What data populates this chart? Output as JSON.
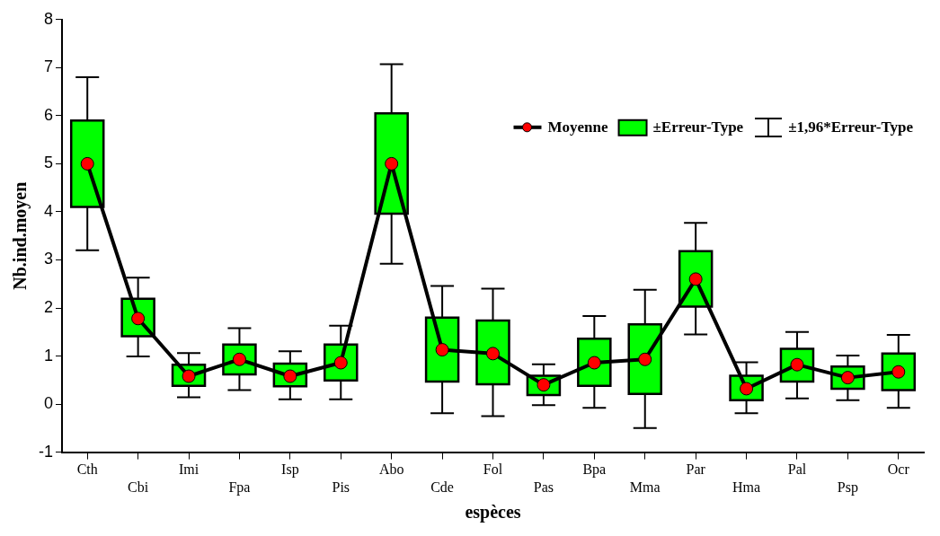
{
  "chart_data": {
    "type": "box",
    "xlabel": "espèces",
    "ylabel": "Nb.ind.moyen",
    "categories": [
      "Cth",
      "Cbi",
      "Imi",
      "Fpa",
      "Isp",
      "Pis",
      "Abo",
      "Cde",
      "Fol",
      "Pas",
      "Bpa",
      "Mma",
      "Par",
      "Hma",
      "Pal",
      "Psp",
      "Ocr"
    ],
    "annotations": [
      "±1,96*Erreur-Type"
    ],
    "ylim": [
      -1,
      8
    ],
    "yticks": [
      -1,
      0,
      1,
      2,
      3,
      4,
      5,
      6,
      7,
      8
    ],
    "grid": false,
    "legend": "top right",
    "marker": "circle",
    "line_style": "solid",
    "series": [
      {
        "name": "Moyenne",
        "type": "line",
        "color": "#ff0000",
        "values": [
          5.0,
          1.78,
          0.58,
          0.93,
          0.58,
          0.86,
          5.0,
          1.13,
          1.05,
          0.4,
          0.86,
          0.93,
          2.6,
          0.32,
          0.82,
          0.55,
          0.67
        ]
      },
      {
        "name": "±Erreur-Type",
        "type": "box",
        "color": "#00ff00",
        "boxes": [
          {
            "low": 3.2,
            "q1": 4.1,
            "q3": 5.9,
            "high": 6.8
          },
          {
            "low": 0.99,
            "q1": 1.41,
            "q3": 2.19,
            "high": 2.63
          },
          {
            "low": 0.14,
            "q1": 0.38,
            "q3": 0.82,
            "high": 1.06
          },
          {
            "low": 0.29,
            "q1": 0.62,
            "q3": 1.24,
            "high": 1.58
          },
          {
            "low": 0.1,
            "q1": 0.37,
            "q3": 0.84,
            "high": 1.1
          },
          {
            "low": 0.1,
            "q1": 0.49,
            "q3": 1.24,
            "high": 1.63
          },
          {
            "low": 2.92,
            "q1": 3.96,
            "q3": 6.05,
            "high": 7.07
          },
          {
            "low": -0.19,
            "q1": 0.47,
            "q3": 1.8,
            "high": 2.46
          },
          {
            "low": -0.25,
            "q1": 0.41,
            "q3": 1.74,
            "high": 2.4
          },
          {
            "low": -0.02,
            "q1": 0.19,
            "q3": 0.59,
            "high": 0.83
          },
          {
            "low": -0.08,
            "q1": 0.38,
            "q3": 1.36,
            "high": 1.83
          },
          {
            "low": -0.5,
            "q1": 0.21,
            "q3": 1.66,
            "high": 2.38
          },
          {
            "low": 1.45,
            "q1": 2.03,
            "q3": 3.18,
            "high": 3.77
          },
          {
            "low": -0.19,
            "q1": 0.08,
            "q3": 0.59,
            "high": 0.87
          },
          {
            "low": 0.12,
            "q1": 0.47,
            "q3": 1.15,
            "high": 1.5
          },
          {
            "low": 0.08,
            "q1": 0.32,
            "q3": 0.78,
            "high": 1.01
          },
          {
            "low": -0.08,
            "q1": 0.29,
            "q3": 1.05,
            "high": 1.44
          }
        ]
      }
    ]
  }
}
